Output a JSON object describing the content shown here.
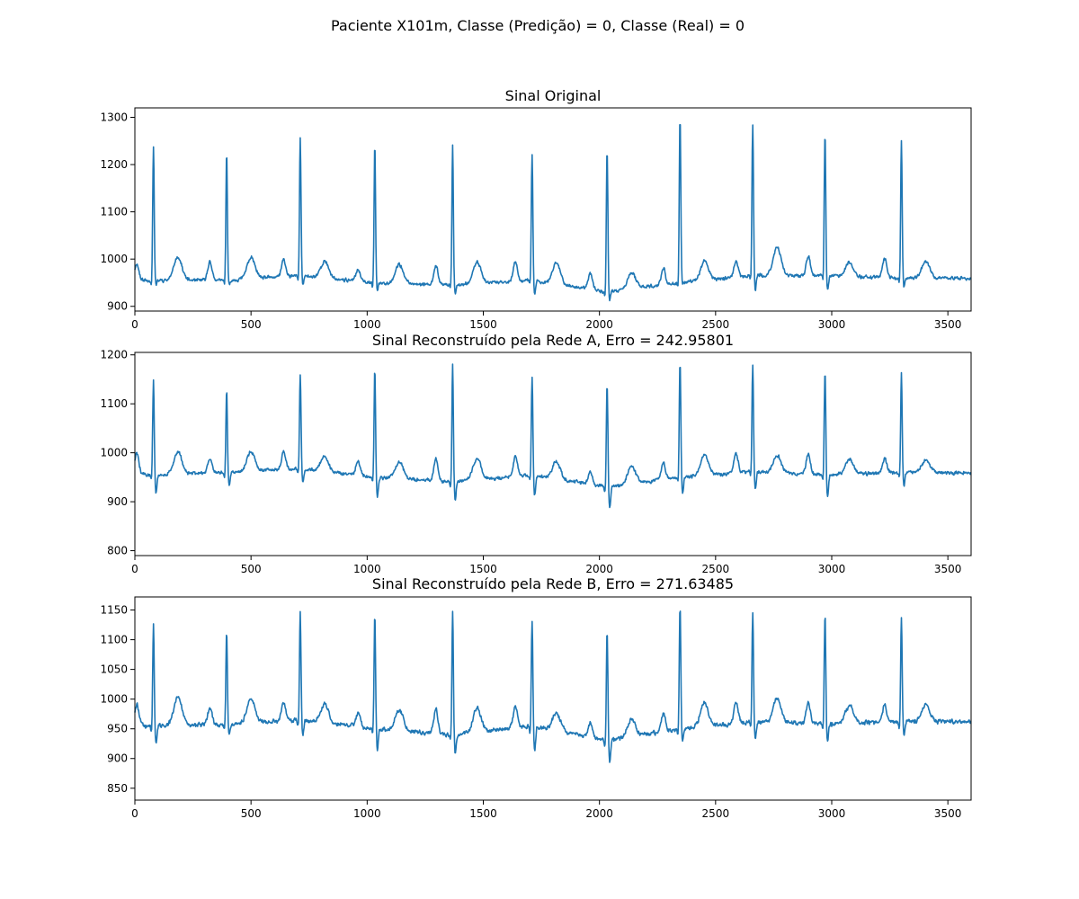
{
  "figure": {
    "suptitle": "Paciente X101m, Classe (Predição) = 0, Classe (Real) = 0",
    "line_color": "#1f77b4"
  },
  "chart_data": [
    {
      "type": "line",
      "title": "Sinal Original",
      "xlabel": "",
      "ylabel": "",
      "xlim": [
        0,
        3600
      ],
      "ylim": [
        890,
        1320
      ],
      "xticks": [
        0,
        500,
        1000,
        1500,
        2000,
        2500,
        3000,
        3500
      ],
      "yticks": [
        900,
        1000,
        1100,
        1200,
        1300
      ],
      "grid": false,
      "beats": {
        "r_x": [
          80,
          395,
          712,
          1033,
          1368,
          1710,
          2033,
          2347,
          2660,
          2971,
          3300
        ],
        "r_peak": [
          1240,
          1228,
          1257,
          1243,
          1244,
          1224,
          1236,
          1299,
          1288,
          1267,
          1253
        ],
        "r_trough": [
          945,
          942,
          944,
          930,
          925,
          922,
          912,
          948,
          930,
          930,
          940
        ],
        "baseline": [
          955,
          955,
          965,
          950,
          945,
          955,
          930,
          950,
          965,
          965,
          960
        ],
        "p_amp": [
          35,
          40,
          35,
          25,
          40,
          40,
          35,
          35,
          35,
          40,
          40
        ],
        "t_amp": [
          50,
          45,
          35,
          40,
          45,
          45,
          35,
          40,
          60,
          30,
          35
        ]
      },
      "series": [
        {
          "values_note": ""
        }
      ]
    },
    {
      "type": "line",
      "title": "Sinal Reconstruído pela Rede A, Erro = 242.95801",
      "xlabel": "",
      "ylabel": "",
      "xlim": [
        0,
        3600
      ],
      "ylim": [
        790,
        1205
      ],
      "xticks": [
        0,
        500,
        1000,
        1500,
        2000,
        2500,
        3000,
        3500
      ],
      "yticks": [
        800,
        900,
        1000,
        1100,
        1200
      ],
      "grid": false,
      "beats": {
        "r_x": [
          80,
          395,
          712,
          1033,
          1368,
          1710,
          2033,
          2347,
          2660,
          2971,
          3300
        ],
        "r_peak": [
          1148,
          1130,
          1163,
          1176,
          1181,
          1157,
          1142,
          1185,
          1180,
          1168,
          1163
        ],
        "r_trough": [
          912,
          930,
          932,
          905,
          898,
          905,
          885,
          915,
          925,
          905,
          930
        ],
        "baseline": [
          955,
          960,
          968,
          950,
          940,
          955,
          930,
          950,
          962,
          955,
          960
        ],
        "p_amp": [
          45,
          30,
          35,
          30,
          45,
          40,
          25,
          35,
          40,
          40,
          30
        ],
        "t_amp": [
          45,
          40,
          30,
          35,
          45,
          35,
          35,
          40,
          35,
          30,
          25
        ]
      }
    },
    {
      "type": "line",
      "title": "Sinal Reconstruído pela Rede B, Erro = 271.63485",
      "xlabel": "",
      "ylabel": "",
      "xlim": [
        0,
        3600
      ],
      "ylim": [
        830,
        1172
      ],
      "xticks": [
        0,
        500,
        1000,
        1500,
        2000,
        2500,
        3000,
        3500
      ],
      "yticks": [
        850,
        900,
        950,
        1000,
        1050,
        1100,
        1150
      ],
      "grid": false,
      "beats": {
        "r_x": [
          80,
          395,
          712,
          1033,
          1368,
          1710,
          2033,
          2347,
          2660,
          2971,
          3300
        ],
        "r_peak": [
          1125,
          1116,
          1145,
          1147,
          1150,
          1130,
          1114,
          1158,
          1147,
          1143,
          1138
        ],
        "r_trough": [
          922,
          935,
          935,
          910,
          905,
          910,
          892,
          930,
          930,
          925,
          935
        ],
        "baseline": [
          955,
          958,
          965,
          950,
          940,
          955,
          930,
          950,
          962,
          958,
          962
        ],
        "p_amp": [
          35,
          30,
          30,
          25,
          40,
          35,
          25,
          30,
          35,
          35,
          30
        ],
        "t_amp": [
          48,
          40,
          30,
          35,
          40,
          30,
          30,
          40,
          40,
          30,
          30
        ]
      }
    }
  ]
}
